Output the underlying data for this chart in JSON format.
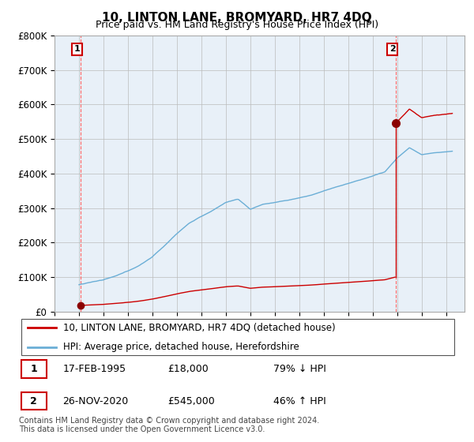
{
  "title": "10, LINTON LANE, BROMYARD, HR7 4DQ",
  "subtitle": "Price paid vs. HM Land Registry's House Price Index (HPI)",
  "ylim": [
    0,
    800000
  ],
  "yticks": [
    0,
    100000,
    200000,
    300000,
    400000,
    500000,
    600000,
    700000,
    800000
  ],
  "ytick_labels": [
    "£0",
    "£100K",
    "£200K",
    "£300K",
    "£400K",
    "£500K",
    "£600K",
    "£700K",
    "£800K"
  ],
  "xlim_start": 1993.0,
  "xlim_end": 2026.5,
  "xticks": [
    1993,
    1995,
    1997,
    1999,
    2001,
    2003,
    2005,
    2007,
    2009,
    2011,
    2013,
    2015,
    2017,
    2019,
    2021,
    2023,
    2025
  ],
  "transaction1_date": 1995.12,
  "transaction1_price": 18000,
  "transaction2_date": 2020.9,
  "transaction2_price": 545000,
  "hpi_line_color": "#6aaed6",
  "price_line_color": "#cc0000",
  "marker_color": "#8b0000",
  "grid_color": "#bbbbbb",
  "vline_color": "#ff6666",
  "bg_color": "#ddeeff",
  "plot_bg": "#e8f0f8",
  "legend_line1": "10, LINTON LANE, BROMYARD, HR7 4DQ (detached house)",
  "legend_line2": "HPI: Average price, detached house, Herefordshire",
  "table_row1": [
    "1",
    "17-FEB-1995",
    "£18,000",
    "79% ↓ HPI"
  ],
  "table_row2": [
    "2",
    "26-NOV-2020",
    "£545,000",
    "46% ↑ HPI"
  ],
  "footnote": "Contains HM Land Registry data © Crown copyright and database right 2024.\nThis data is licensed under the Open Government Licence v3.0."
}
